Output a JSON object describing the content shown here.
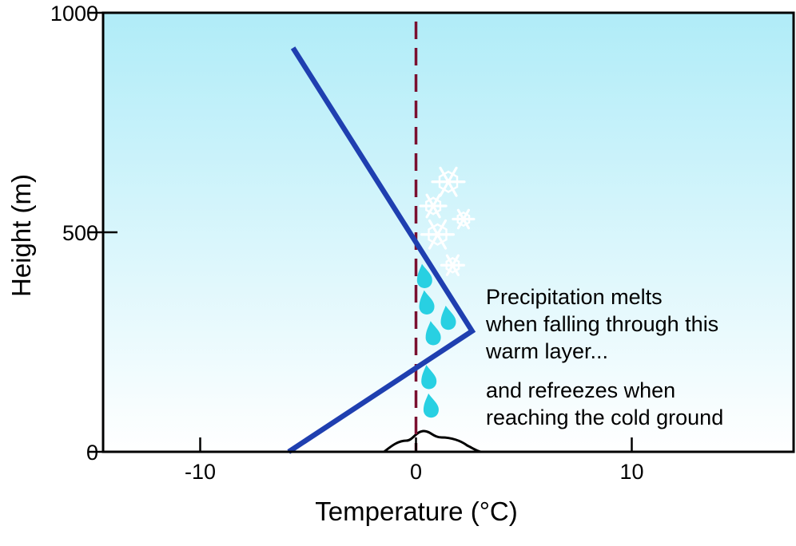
{
  "chart_data": {
    "type": "line",
    "title": "",
    "xlabel": "Temperature (°C)",
    "ylabel": "Height (m)",
    "xlim": [
      -14.5,
      17.5
    ],
    "ylim": [
      0,
      1000
    ],
    "xticks": [
      {
        "value": -10,
        "label": "-10"
      },
      {
        "value": 0,
        "label": "0"
      },
      {
        "value": 10,
        "label": "10"
      }
    ],
    "yticks": [
      {
        "value": 0,
        "label": "0"
      },
      {
        "value": 500,
        "label": "500"
      },
      {
        "value": 1000,
        "label": "1000"
      }
    ],
    "grid": false,
    "series": [
      {
        "name": "",
        "color": "#1f3fb0",
        "x": [
          -5.7,
          2.6,
          -5.9
        ],
        "y": [
          920,
          275,
          0
        ]
      }
    ],
    "freezing_line": {
      "x": 0,
      "y_range": [
        0,
        980
      ],
      "color": "#7a1030",
      "style": "dashed"
    },
    "background_gradient": [
      "#b0ecf8",
      "#ffffff"
    ],
    "snowflakes": [
      {
        "x": 1.5,
        "y": 615,
        "size": 1.0
      },
      {
        "x": 0.8,
        "y": 560,
        "size": 0.8
      },
      {
        "x": 2.2,
        "y": 530,
        "size": 0.65
      },
      {
        "x": 1.0,
        "y": 495,
        "size": 1.0
      },
      {
        "x": 1.7,
        "y": 425,
        "size": 0.7
      }
    ],
    "raindrops": [
      {
        "x": 0.4,
        "y": 390
      },
      {
        "x": 0.5,
        "y": 330
      },
      {
        "x": 1.5,
        "y": 295
      },
      {
        "x": 0.8,
        "y": 260
      },
      {
        "x": 0.6,
        "y": 160
      },
      {
        "x": 0.7,
        "y": 95
      }
    ],
    "ground_color": "#000000",
    "drop_color": "#28d0e2",
    "annotations": [
      {
        "lines": [
          "Precipitation melts",
          "when falling through this",
          "warm layer..."
        ]
      },
      {
        "lines": [
          "and refreezes when",
          "reaching the cold ground"
        ]
      }
    ]
  }
}
